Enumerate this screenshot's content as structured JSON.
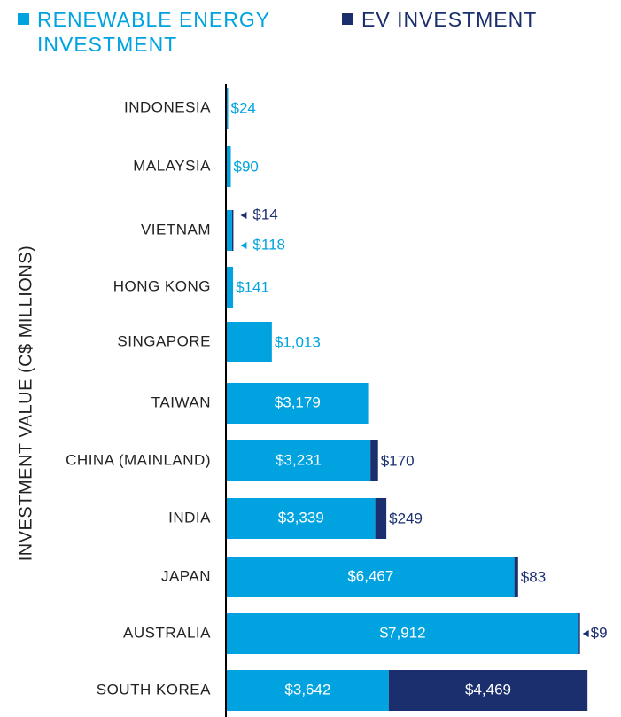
{
  "chart_data": {
    "type": "stacked-bar-horizontal",
    "y_label": "INVESTMENT VALUE (C$ MILLIONS)",
    "categories": [
      "INDONESIA",
      "MALAYSIA",
      "VIETNAM",
      "HONG KONG",
      "SINGAPORE",
      "TAIWAN",
      "CHINA (MAINLAND)",
      "INDIA",
      "JAPAN",
      "AUSTRALIA",
      "SOUTH KOREA"
    ],
    "series": [
      {
        "name": "RENEWABLE ENERGY INVESTMENT",
        "color": "#00a3e0",
        "values": [
          24,
          90,
          118,
          141,
          1013,
          3179,
          3231,
          3339,
          6467,
          7912,
          3642
        ],
        "value_labels": [
          "$24",
          "$90",
          "$118",
          "$141",
          "$1,013",
          "$3,179",
          "$3,231",
          "$3,339",
          "$6,467",
          "$7,912",
          "$3,642"
        ]
      },
      {
        "name": "EV INVESTMENT",
        "color": "#1b2f6e",
        "values": [
          null,
          null,
          14,
          null,
          null,
          null,
          170,
          249,
          83,
          9,
          4469
        ],
        "value_labels": [
          null,
          null,
          "$14",
          null,
          null,
          null,
          "$170",
          "$249",
          "$83",
          "$9",
          "$4,469"
        ]
      }
    ],
    "legend": "top"
  }
}
